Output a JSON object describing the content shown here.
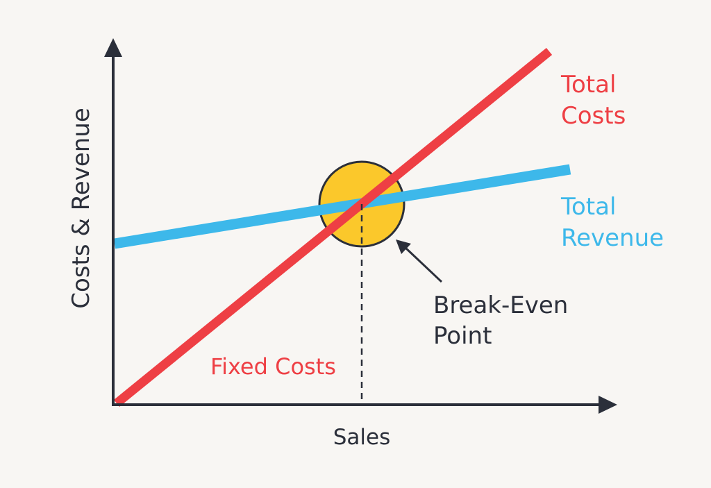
{
  "labels": {
    "y_axis": "Costs & Revenue",
    "x_axis": "Sales",
    "total_costs": [
      "Total",
      "Costs"
    ],
    "total_revenue": [
      "Total",
      "Revenue"
    ],
    "break_even": [
      "Break-Even",
      "Point"
    ],
    "fixed_costs": "Fixed Costs"
  },
  "colors": {
    "axis": "#2b2f3a",
    "total_costs": "#ee3f44",
    "total_revenue": "#3db8ea",
    "break_even_fill": "#fbc82b",
    "text_dark": "#2b2f3a",
    "background": "#f8f6f3"
  }
}
